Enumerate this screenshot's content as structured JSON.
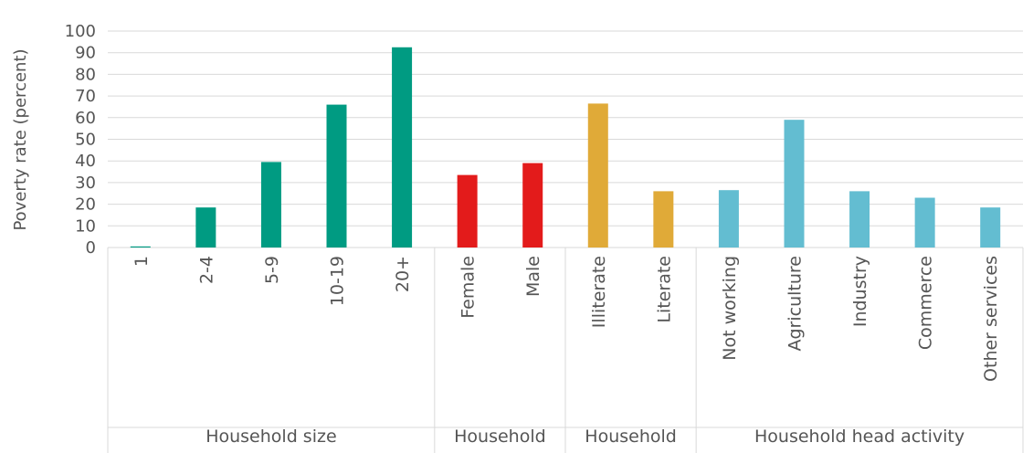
{
  "chart_data": {
    "type": "bar",
    "title": "",
    "xlabel": "",
    "ylabel": "Poverty rate (percent)",
    "ylim": [
      0,
      100
    ],
    "yticks": [
      0,
      10,
      20,
      30,
      40,
      50,
      60,
      70,
      80,
      90,
      100
    ],
    "grid": true,
    "legend": "none",
    "groups": [
      {
        "name": "Household size",
        "color": "#009B82",
        "categories": [
          "1",
          "2-4",
          "5-9",
          "10-19",
          "20+"
        ],
        "values": [
          0.5,
          18.5,
          39.5,
          66,
          92.5
        ]
      },
      {
        "name": "Household",
        "color": "#E31B1B",
        "categories": [
          "Female",
          "Male"
        ],
        "values": [
          33.5,
          39
        ]
      },
      {
        "name": "Household",
        "color": "#E0AA38",
        "categories": [
          "Illiterate",
          "Literate"
        ],
        "values": [
          66.5,
          26
        ]
      },
      {
        "name": "Household head activity",
        "color": "#63BDD1",
        "categories": [
          "Not working",
          "Agriculture",
          "Industry",
          "Commerce",
          "Other services"
        ],
        "values": [
          26.5,
          59,
          26,
          23,
          18.5
        ]
      }
    ]
  }
}
